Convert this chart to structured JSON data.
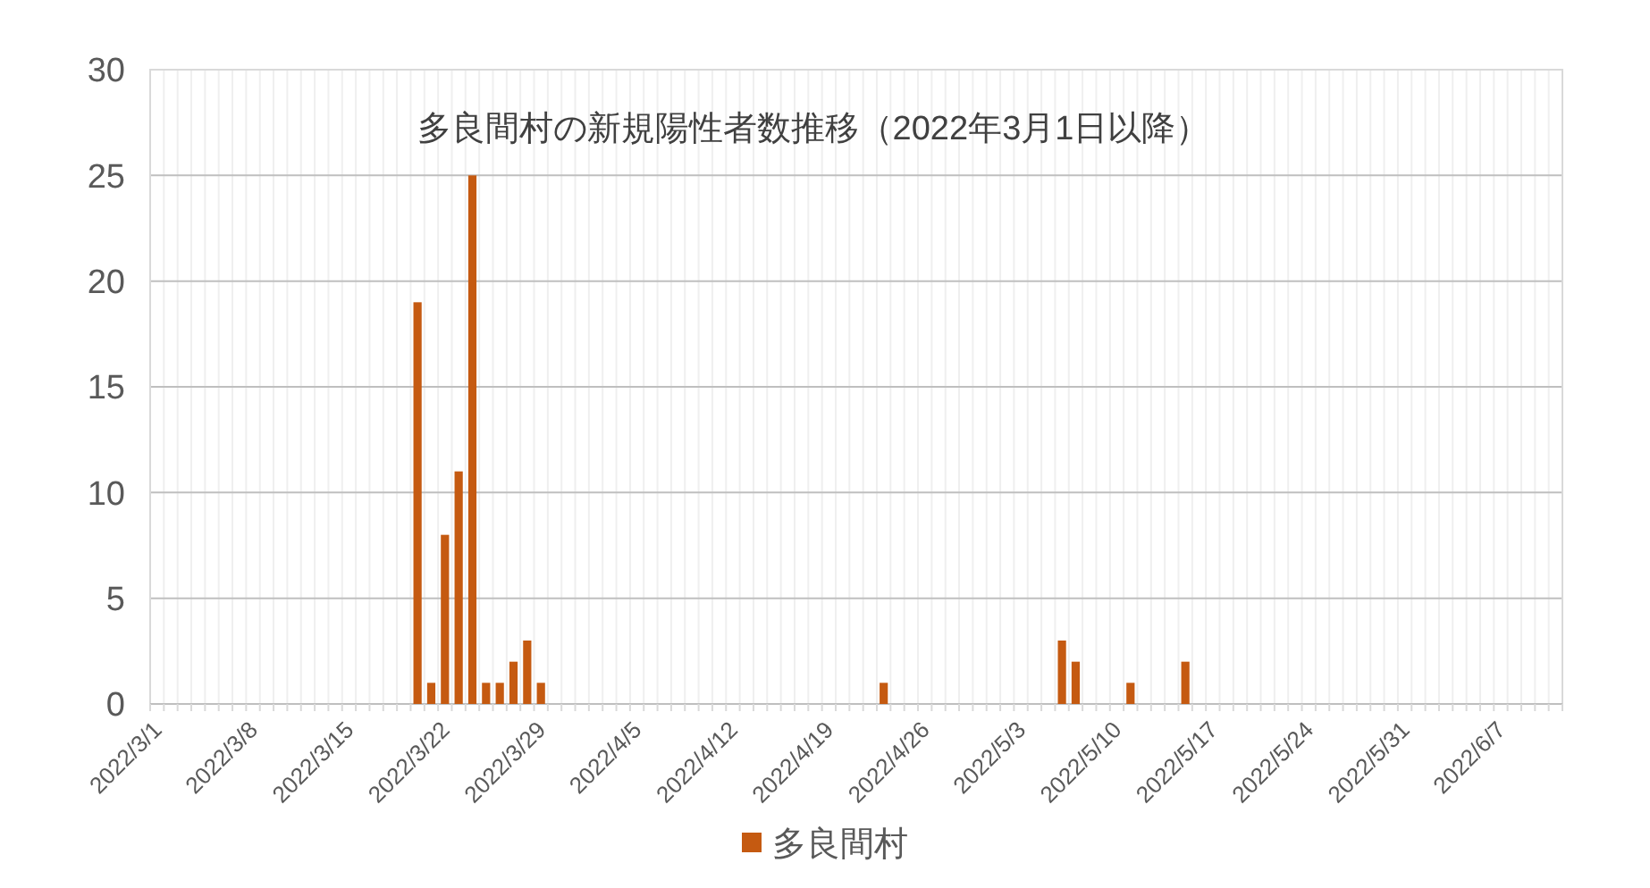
{
  "chart_data": {
    "type": "bar",
    "title": "多良間村の新規陽性者数推移（2022年3月1日以降）",
    "x": [
      "2022-03-20",
      "2022-03-21",
      "2022-03-22",
      "2022-03-23",
      "2022-03-24",
      "2022-03-25",
      "2022-03-26",
      "2022-03-27",
      "2022-03-28",
      "2022-03-29",
      "2022-04-23",
      "2022-05-06",
      "2022-05-07",
      "2022-05-11",
      "2022-05-15"
    ],
    "series": [
      {
        "name": "多良間村",
        "color": "#c55a11",
        "values": [
          19,
          1,
          8,
          11,
          25,
          1,
          1,
          2,
          3,
          1,
          1,
          3,
          2,
          1,
          2
        ]
      }
    ],
    "xlim": [
      "2022-03-01",
      "2022-06-12"
    ],
    "xticks": [
      {
        "value": "2022-03-01",
        "label": "2022/3/1"
      },
      {
        "value": "2022-03-08",
        "label": "2022/3/8"
      },
      {
        "value": "2022-03-15",
        "label": "2022/3/15"
      },
      {
        "value": "2022-03-22",
        "label": "2022/3/22"
      },
      {
        "value": "2022-03-29",
        "label": "2022/3/29"
      },
      {
        "value": "2022-04-05",
        "label": "2022/4/5"
      },
      {
        "value": "2022-04-12",
        "label": "2022/4/12"
      },
      {
        "value": "2022-04-19",
        "label": "2022/4/19"
      },
      {
        "value": "2022-04-26",
        "label": "2022/4/26"
      },
      {
        "value": "2022-05-03",
        "label": "2022/5/3"
      },
      {
        "value": "2022-05-10",
        "label": "2022/5/10"
      },
      {
        "value": "2022-05-17",
        "label": "2022/5/17"
      },
      {
        "value": "2022-05-24",
        "label": "2022/5/24"
      },
      {
        "value": "2022-05-31",
        "label": "2022/5/31"
      },
      {
        "value": "2022-06-07",
        "label": "2022/6/7"
      }
    ],
    "ylim": [
      0,
      30
    ],
    "yticks": [
      0,
      5,
      10,
      15,
      20,
      25,
      30
    ],
    "grid": true,
    "legend": "bottom"
  }
}
